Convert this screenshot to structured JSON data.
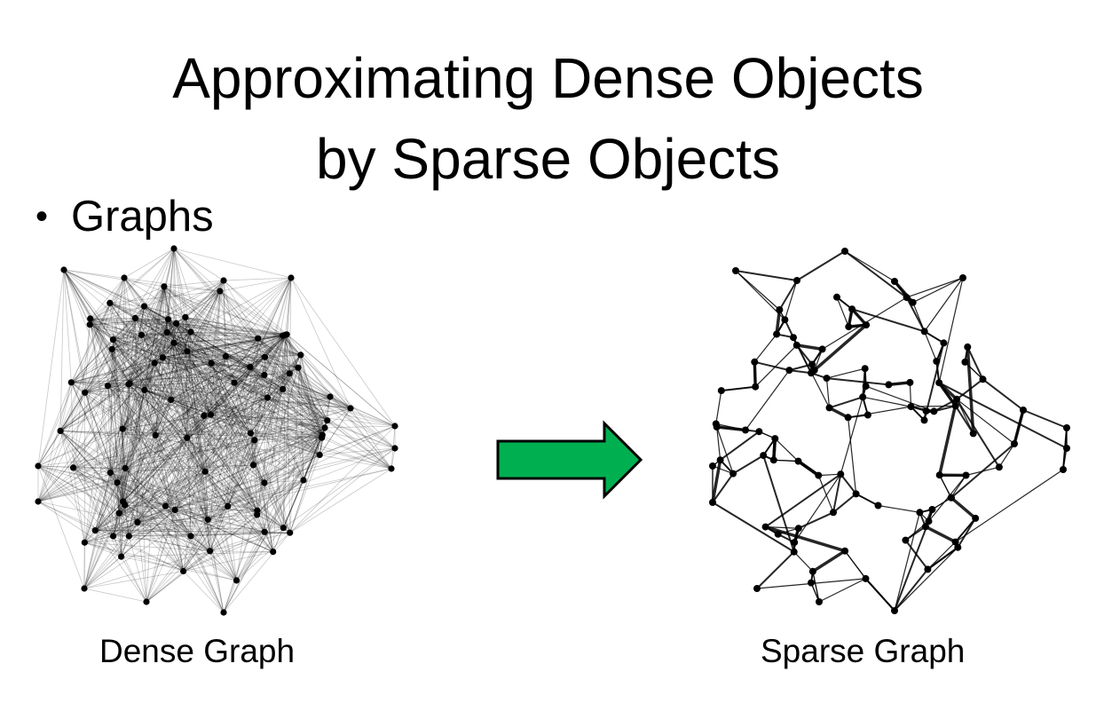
{
  "slide": {
    "title_line1": "Approximating Dense Objects",
    "title_line2": "by Sparse Objects",
    "bullet": "Graphs",
    "dense_caption": "Dense Graph",
    "sparse_caption": "Sparse Graph"
  },
  "colors": {
    "arrow_fill": "#00b050",
    "arrow_stroke": "#000000",
    "node": "#000000"
  }
}
